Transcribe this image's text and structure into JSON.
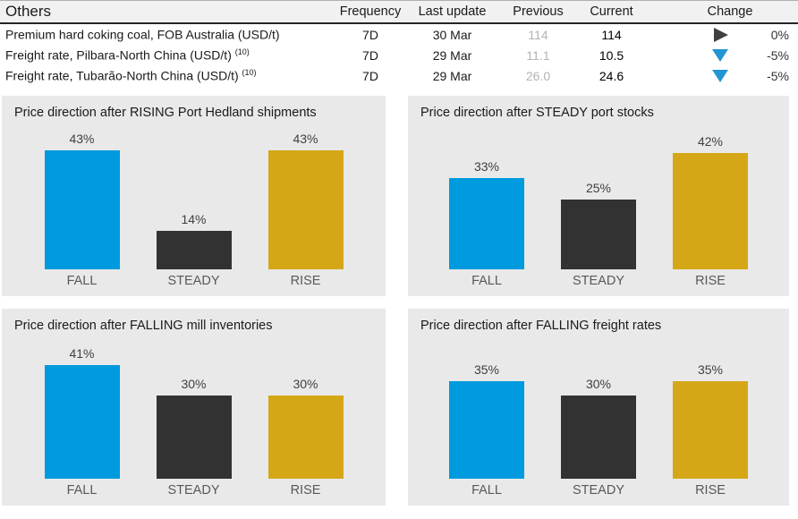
{
  "table": {
    "title": "Others",
    "columns": [
      "Frequency",
      "Last update",
      "Previous",
      "Current",
      "Change"
    ],
    "rows": [
      {
        "name": "Premium hard coking coal, FOB Australia (USD/t)",
        "frequency": "7D",
        "last_update": "30 Mar",
        "previous": "114",
        "current": "114",
        "change": "0%",
        "direction": "steady"
      },
      {
        "name": "Freight rate, Pilbara-North China (USD/t)",
        "sup": "(10)",
        "frequency": "7D",
        "last_update": "29 Mar",
        "previous": "11.1",
        "current": "10.5",
        "change": "-5%",
        "direction": "down"
      },
      {
        "name": "Freight rate, Tubarão-North China (USD/t)",
        "sup": "(10)",
        "frequency": "7D",
        "last_update": "29 Mar",
        "previous": "26.0",
        "current": "24.6",
        "change": "-5%",
        "direction": "down"
      }
    ]
  },
  "colors": {
    "fall_bar": "#009ade",
    "steady_bar": "#323232",
    "rise_bar": "#d5a717",
    "down_arrow": "#2196d3",
    "steady_arrow": "#404040",
    "panel_background": "#e9e9e9"
  },
  "chart_data": [
    {
      "type": "bar",
      "title": "Price direction after RISING Port Hedland shipments",
      "categories": [
        "FALL",
        "STEADY",
        "RISE"
      ],
      "values": [
        43,
        14,
        43
      ],
      "labels": [
        "43%",
        "14%",
        "43%"
      ],
      "unit": "%",
      "ylim": [
        0,
        50
      ],
      "grid": false,
      "legend": false
    },
    {
      "type": "bar",
      "title": "Price direction after STEADY port stocks",
      "categories": [
        "FALL",
        "STEADY",
        "RISE"
      ],
      "values": [
        33,
        25,
        42
      ],
      "labels": [
        "33%",
        "25%",
        "42%"
      ],
      "unit": "%",
      "ylim": [
        0,
        50
      ],
      "grid": false,
      "legend": false
    },
    {
      "type": "bar",
      "title": "Price direction after FALLING mill inventories",
      "categories": [
        "FALL",
        "STEADY",
        "RISE"
      ],
      "values": [
        41,
        30,
        30
      ],
      "labels": [
        "41%",
        "30%",
        "30%"
      ],
      "unit": "%",
      "ylim": [
        0,
        50
      ],
      "grid": false,
      "legend": false
    },
    {
      "type": "bar",
      "title": "Price direction after FALLING freight rates",
      "categories": [
        "FALL",
        "STEADY",
        "RISE"
      ],
      "values": [
        35,
        30,
        35
      ],
      "labels": [
        "35%",
        "30%",
        "35%"
      ],
      "unit": "%",
      "ylim": [
        0,
        50
      ],
      "grid": false,
      "legend": false
    }
  ]
}
